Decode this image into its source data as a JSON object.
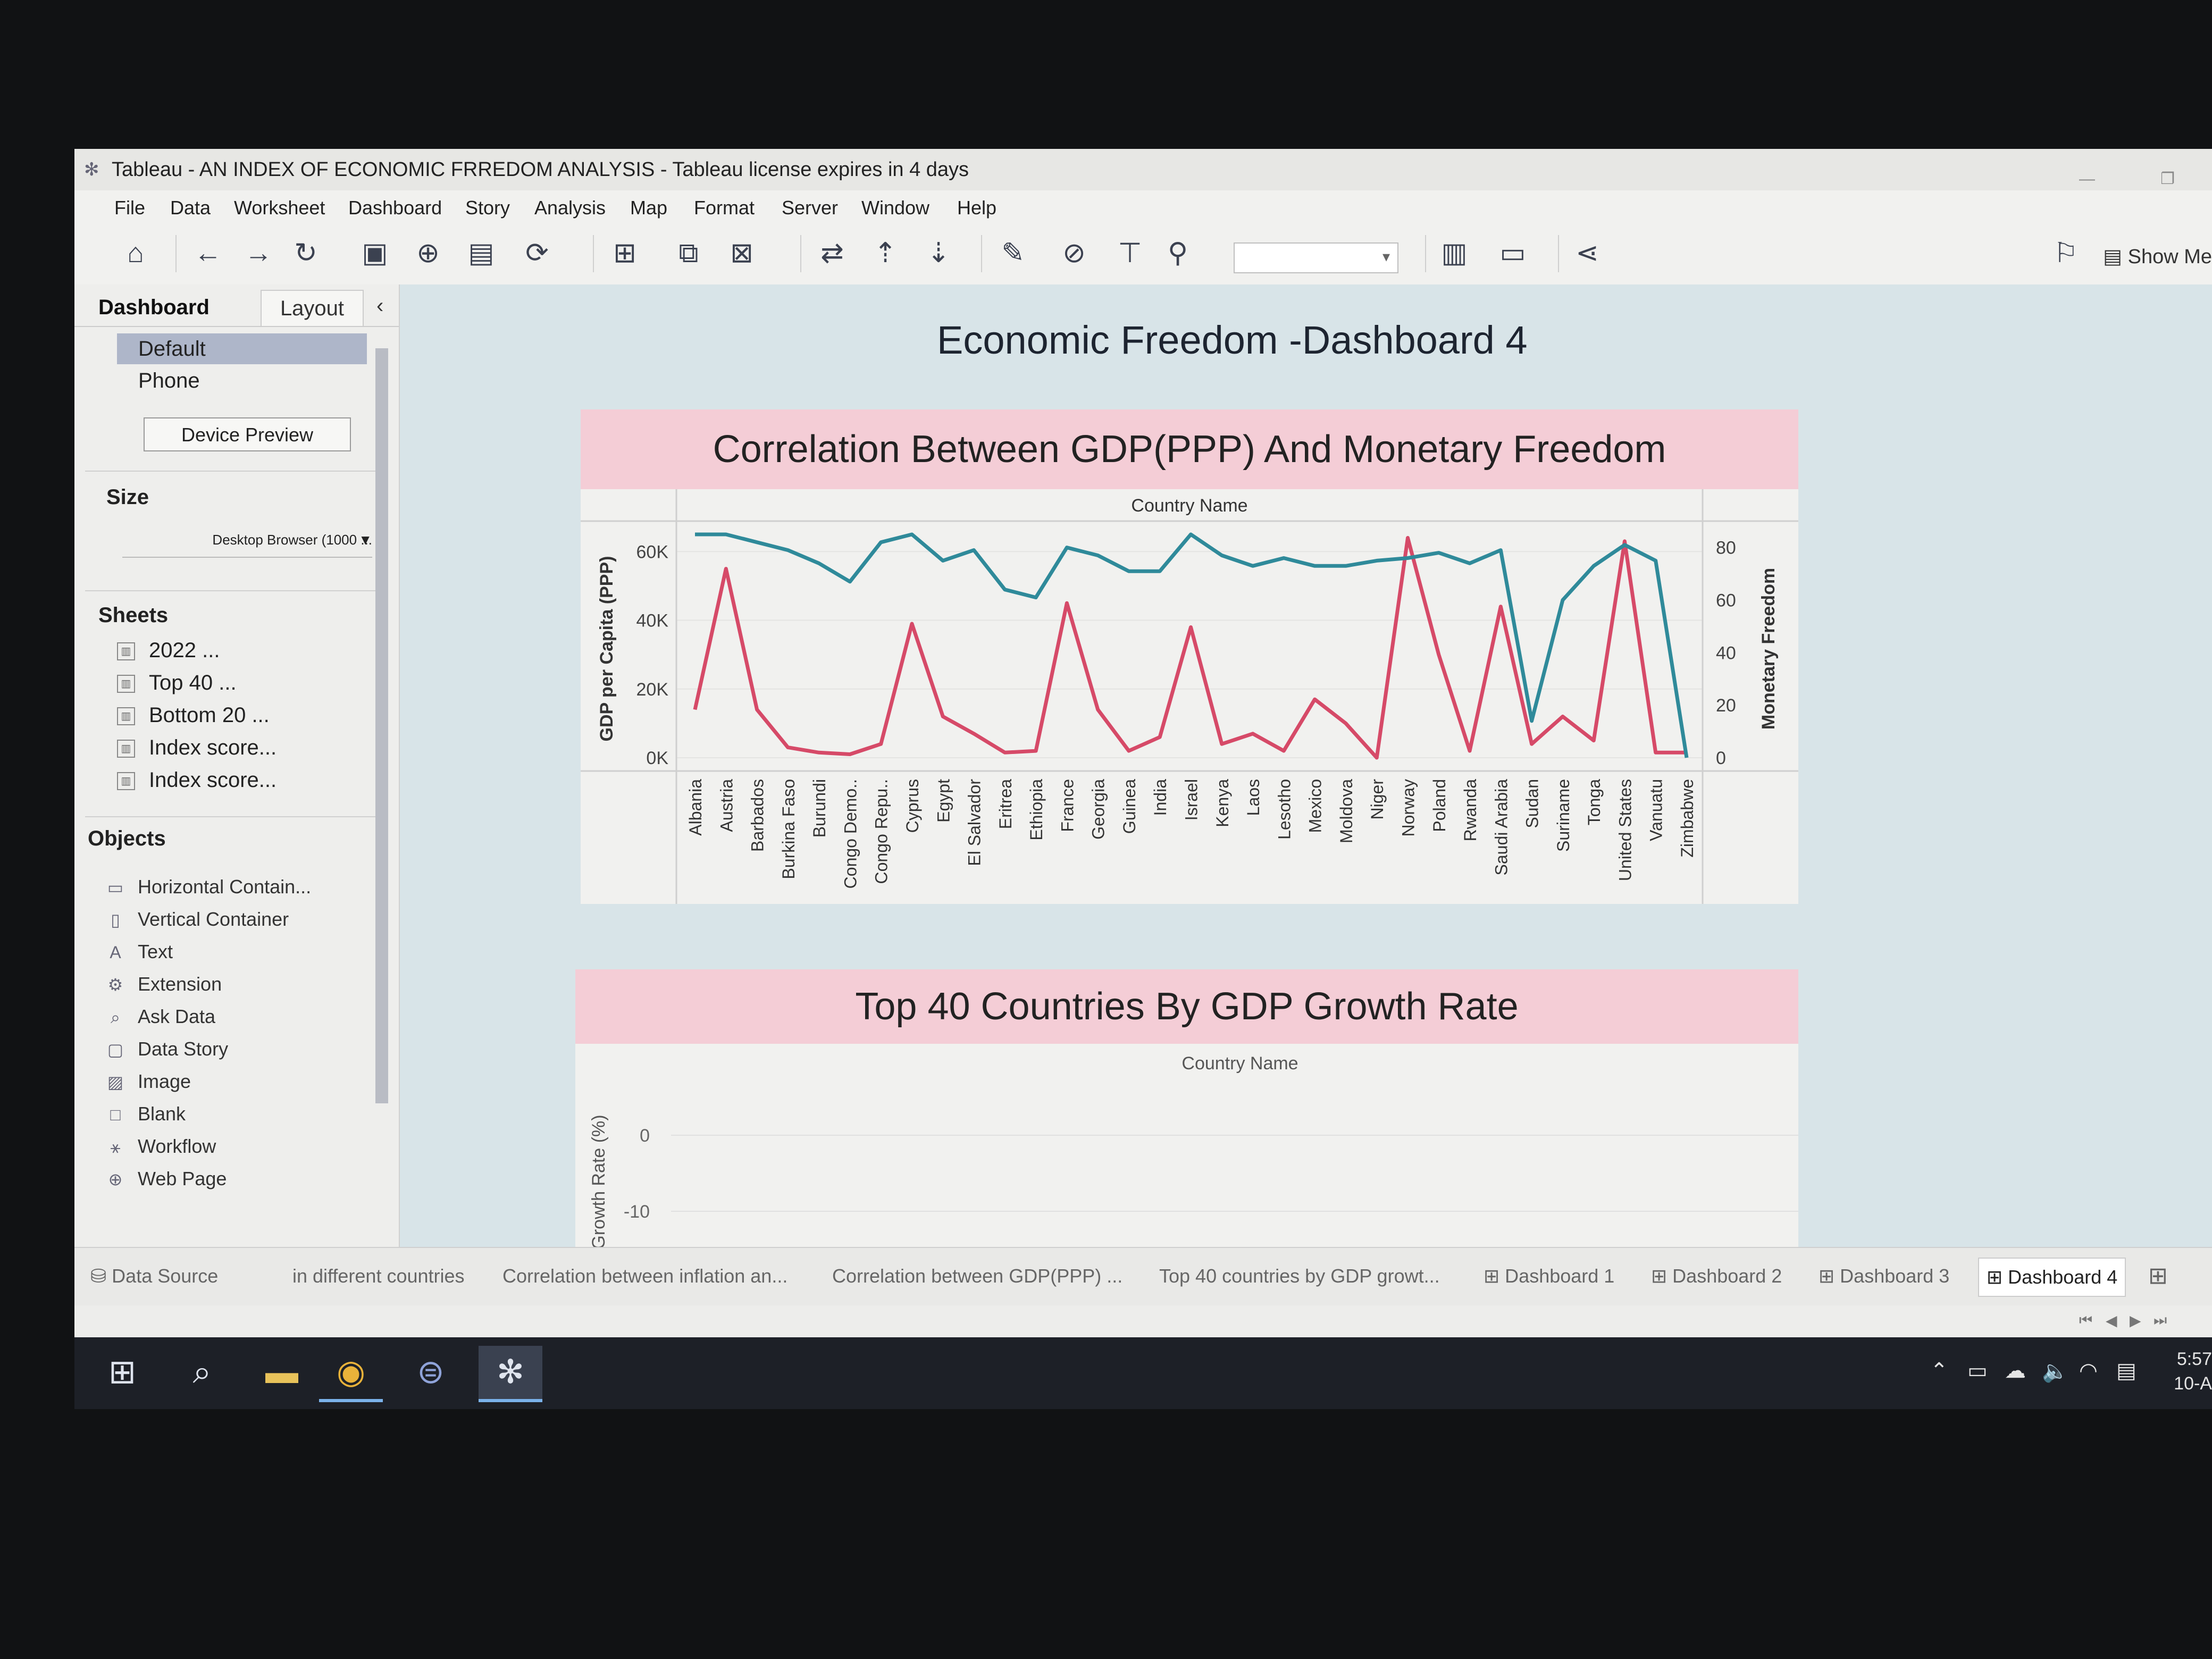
{
  "window": {
    "title": "Tableau - AN INDEX OF ECONOMIC FRREDOM ANALYSIS - Tableau license expires in 4 days"
  },
  "menu": [
    "File",
    "Data",
    "Worksheet",
    "Dashboard",
    "Story",
    "Analysis",
    "Map",
    "Format",
    "Server",
    "Window",
    "Help"
  ],
  "toolbar": {
    "show_me": "Show Me"
  },
  "left_pane": {
    "tabs": {
      "dashboard": "Dashboard",
      "layout": "Layout"
    },
    "device": {
      "default": "Default",
      "phone": "Phone",
      "preview_button": "Device Preview"
    },
    "size": {
      "title": "Size",
      "value": "Desktop Browser (1000 ..."
    },
    "sheets": {
      "title": "Sheets",
      "items": [
        "2022 ...",
        "Top 40 ...",
        "Bottom 20 ...",
        "Index score...",
        "Index score..."
      ]
    },
    "objects": {
      "title": "Objects",
      "items": [
        {
          "label": "Horizontal Contain...",
          "icon": "horizontal-container-icon"
        },
        {
          "label": "Vertical Container",
          "icon": "vertical-container-icon"
        },
        {
          "label": "Text",
          "icon": "text-icon"
        },
        {
          "label": "Extension",
          "icon": "extension-icon"
        },
        {
          "label": "Ask Data",
          "icon": "ask-data-icon"
        },
        {
          "label": "Data Story",
          "icon": "data-story-icon"
        },
        {
          "label": "Image",
          "icon": "image-icon"
        },
        {
          "label": "Blank",
          "icon": "blank-icon"
        },
        {
          "label": "Workflow",
          "icon": "workflow-icon"
        },
        {
          "label": "Web Page",
          "icon": "web-page-icon"
        }
      ]
    }
  },
  "dashboard": {
    "title": "Economic Freedom -Dashboard 4",
    "panel1_title": "Correlation Between GDP(PPP) And Monetary Freedom",
    "panel2_title": "Top 40 Countries By GDP Growth Rate"
  },
  "chart_data": [
    {
      "type": "line",
      "title": "Correlation Between GDP(PPP) And Monetary Freedom",
      "xlabel": "Country Name",
      "ylabel": "GDP per Capita (PPP)",
      "y2label": "Monetary Freedom",
      "ylim": [
        0,
        65000
      ],
      "y2lim": [
        0,
        85
      ],
      "yticks": [
        "0K",
        "20K",
        "40K",
        "60K"
      ],
      "y2ticks": [
        "0",
        "20",
        "40",
        "60",
        "80"
      ],
      "categories": [
        "Albania",
        "Austria",
        "Barbados",
        "Burkina Faso",
        "Burundi",
        "Congo Demo..",
        "Congo Repu..",
        "Cyprus",
        "Egypt",
        "El Salvador",
        "Eritrea",
        "Ethiopia",
        "France",
        "Georgia",
        "Guinea",
        "India",
        "Israel",
        "Kenya",
        "Laos",
        "Lesotho",
        "Mexico",
        "Moldova",
        "Niger",
        "Norway",
        "Poland",
        "Rwanda",
        "Saudi Arabia",
        "Sudan",
        "Suriname",
        "Tonga",
        "United States",
        "Vanuatu",
        "Zimbabwe"
      ],
      "grid": true,
      "series": [
        {
          "axis": "left",
          "color": "#d64a68",
          "values": [
            14000,
            55000,
            14000,
            3000,
            1500,
            1000,
            4000,
            39000,
            12000,
            7000,
            1500,
            2000,
            45000,
            14000,
            2000,
            6000,
            38000,
            4000,
            7000,
            2000,
            17000,
            10000,
            0,
            64000,
            30000,
            2000,
            44000,
            4000,
            12000,
            5000,
            63000,
            1500,
            1500
          ]
        },
        {
          "axis": "right",
          "color": "#2f8a9a",
          "values": [
            85,
            85,
            82,
            79,
            74,
            67,
            82,
            85,
            75,
            79,
            64,
            61,
            80,
            77,
            71,
            71,
            85,
            77,
            73,
            76,
            73,
            73,
            75,
            76,
            78,
            74,
            79,
            14,
            60,
            73,
            81,
            75,
            0
          ]
        }
      ]
    },
    {
      "type": "bar",
      "title": "Top 40 Countries By GDP Growth Rate",
      "xlabel": "Country Name",
      "ylabel": "Growth Rate (%)",
      "yticks": [
        "0",
        "-10"
      ]
    }
  ],
  "sheet_tabs": {
    "data_source": "Data Source",
    "items": [
      "in different countries",
      "Correlation between inflation an...",
      "Correlation between GDP(PPP) ...",
      "Top 40 countries by GDP growt..."
    ],
    "dashboards": [
      "Dashboard 1",
      "Dashboard 2",
      "Dashboard 3",
      "Dashboard 4"
    ],
    "active": "Dashboard 4"
  },
  "taskbar": {
    "time": "5:57",
    "date": "10-A"
  }
}
